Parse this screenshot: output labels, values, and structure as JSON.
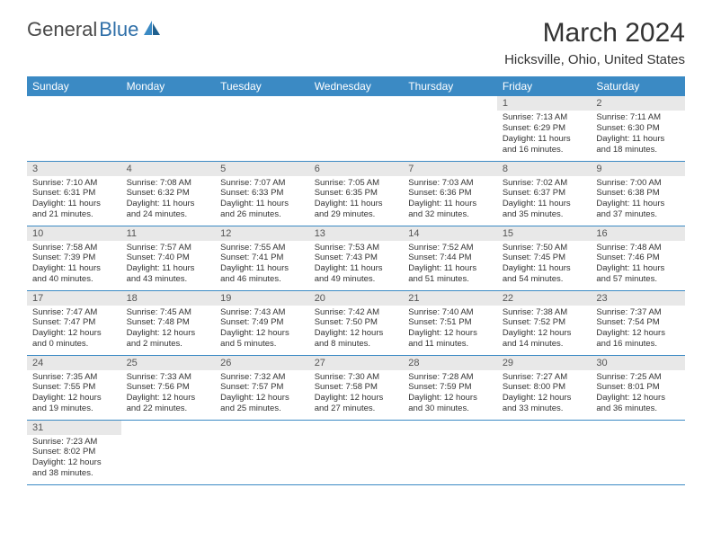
{
  "logo": {
    "general": "General",
    "blue": "Blue"
  },
  "title": "March 2024",
  "subtitle": "Hicksville, Ohio, United States",
  "colors": {
    "header_bg": "#3b8ac4",
    "header_text": "#ffffff",
    "daynum_bg": "#e8e8e8",
    "border": "#3b8ac4",
    "text": "#333333",
    "logo_gray": "#4a4a4a",
    "logo_blue": "#2f6fa8"
  },
  "weekdays": [
    "Sunday",
    "Monday",
    "Tuesday",
    "Wednesday",
    "Thursday",
    "Friday",
    "Saturday"
  ],
  "weeks": [
    [
      null,
      null,
      null,
      null,
      null,
      {
        "n": "1",
        "sr": "Sunrise: 7:13 AM",
        "ss": "Sunset: 6:29 PM",
        "dl": "Daylight: 11 hours and 16 minutes."
      },
      {
        "n": "2",
        "sr": "Sunrise: 7:11 AM",
        "ss": "Sunset: 6:30 PM",
        "dl": "Daylight: 11 hours and 18 minutes."
      }
    ],
    [
      {
        "n": "3",
        "sr": "Sunrise: 7:10 AM",
        "ss": "Sunset: 6:31 PM",
        "dl": "Daylight: 11 hours and 21 minutes."
      },
      {
        "n": "4",
        "sr": "Sunrise: 7:08 AM",
        "ss": "Sunset: 6:32 PM",
        "dl": "Daylight: 11 hours and 24 minutes."
      },
      {
        "n": "5",
        "sr": "Sunrise: 7:07 AM",
        "ss": "Sunset: 6:33 PM",
        "dl": "Daylight: 11 hours and 26 minutes."
      },
      {
        "n": "6",
        "sr": "Sunrise: 7:05 AM",
        "ss": "Sunset: 6:35 PM",
        "dl": "Daylight: 11 hours and 29 minutes."
      },
      {
        "n": "7",
        "sr": "Sunrise: 7:03 AM",
        "ss": "Sunset: 6:36 PM",
        "dl": "Daylight: 11 hours and 32 minutes."
      },
      {
        "n": "8",
        "sr": "Sunrise: 7:02 AM",
        "ss": "Sunset: 6:37 PM",
        "dl": "Daylight: 11 hours and 35 minutes."
      },
      {
        "n": "9",
        "sr": "Sunrise: 7:00 AM",
        "ss": "Sunset: 6:38 PM",
        "dl": "Daylight: 11 hours and 37 minutes."
      }
    ],
    [
      {
        "n": "10",
        "sr": "Sunrise: 7:58 AM",
        "ss": "Sunset: 7:39 PM",
        "dl": "Daylight: 11 hours and 40 minutes."
      },
      {
        "n": "11",
        "sr": "Sunrise: 7:57 AM",
        "ss": "Sunset: 7:40 PM",
        "dl": "Daylight: 11 hours and 43 minutes."
      },
      {
        "n": "12",
        "sr": "Sunrise: 7:55 AM",
        "ss": "Sunset: 7:41 PM",
        "dl": "Daylight: 11 hours and 46 minutes."
      },
      {
        "n": "13",
        "sr": "Sunrise: 7:53 AM",
        "ss": "Sunset: 7:43 PM",
        "dl": "Daylight: 11 hours and 49 minutes."
      },
      {
        "n": "14",
        "sr": "Sunrise: 7:52 AM",
        "ss": "Sunset: 7:44 PM",
        "dl": "Daylight: 11 hours and 51 minutes."
      },
      {
        "n": "15",
        "sr": "Sunrise: 7:50 AM",
        "ss": "Sunset: 7:45 PM",
        "dl": "Daylight: 11 hours and 54 minutes."
      },
      {
        "n": "16",
        "sr": "Sunrise: 7:48 AM",
        "ss": "Sunset: 7:46 PM",
        "dl": "Daylight: 11 hours and 57 minutes."
      }
    ],
    [
      {
        "n": "17",
        "sr": "Sunrise: 7:47 AM",
        "ss": "Sunset: 7:47 PM",
        "dl": "Daylight: 12 hours and 0 minutes."
      },
      {
        "n": "18",
        "sr": "Sunrise: 7:45 AM",
        "ss": "Sunset: 7:48 PM",
        "dl": "Daylight: 12 hours and 2 minutes."
      },
      {
        "n": "19",
        "sr": "Sunrise: 7:43 AM",
        "ss": "Sunset: 7:49 PM",
        "dl": "Daylight: 12 hours and 5 minutes."
      },
      {
        "n": "20",
        "sr": "Sunrise: 7:42 AM",
        "ss": "Sunset: 7:50 PM",
        "dl": "Daylight: 12 hours and 8 minutes."
      },
      {
        "n": "21",
        "sr": "Sunrise: 7:40 AM",
        "ss": "Sunset: 7:51 PM",
        "dl": "Daylight: 12 hours and 11 minutes."
      },
      {
        "n": "22",
        "sr": "Sunrise: 7:38 AM",
        "ss": "Sunset: 7:52 PM",
        "dl": "Daylight: 12 hours and 14 minutes."
      },
      {
        "n": "23",
        "sr": "Sunrise: 7:37 AM",
        "ss": "Sunset: 7:54 PM",
        "dl": "Daylight: 12 hours and 16 minutes."
      }
    ],
    [
      {
        "n": "24",
        "sr": "Sunrise: 7:35 AM",
        "ss": "Sunset: 7:55 PM",
        "dl": "Daylight: 12 hours and 19 minutes."
      },
      {
        "n": "25",
        "sr": "Sunrise: 7:33 AM",
        "ss": "Sunset: 7:56 PM",
        "dl": "Daylight: 12 hours and 22 minutes."
      },
      {
        "n": "26",
        "sr": "Sunrise: 7:32 AM",
        "ss": "Sunset: 7:57 PM",
        "dl": "Daylight: 12 hours and 25 minutes."
      },
      {
        "n": "27",
        "sr": "Sunrise: 7:30 AM",
        "ss": "Sunset: 7:58 PM",
        "dl": "Daylight: 12 hours and 27 minutes."
      },
      {
        "n": "28",
        "sr": "Sunrise: 7:28 AM",
        "ss": "Sunset: 7:59 PM",
        "dl": "Daylight: 12 hours and 30 minutes."
      },
      {
        "n": "29",
        "sr": "Sunrise: 7:27 AM",
        "ss": "Sunset: 8:00 PM",
        "dl": "Daylight: 12 hours and 33 minutes."
      },
      {
        "n": "30",
        "sr": "Sunrise: 7:25 AM",
        "ss": "Sunset: 8:01 PM",
        "dl": "Daylight: 12 hours and 36 minutes."
      }
    ],
    [
      {
        "n": "31",
        "sr": "Sunrise: 7:23 AM",
        "ss": "Sunset: 8:02 PM",
        "dl": "Daylight: 12 hours and 38 minutes."
      },
      null,
      null,
      null,
      null,
      null,
      null
    ]
  ]
}
